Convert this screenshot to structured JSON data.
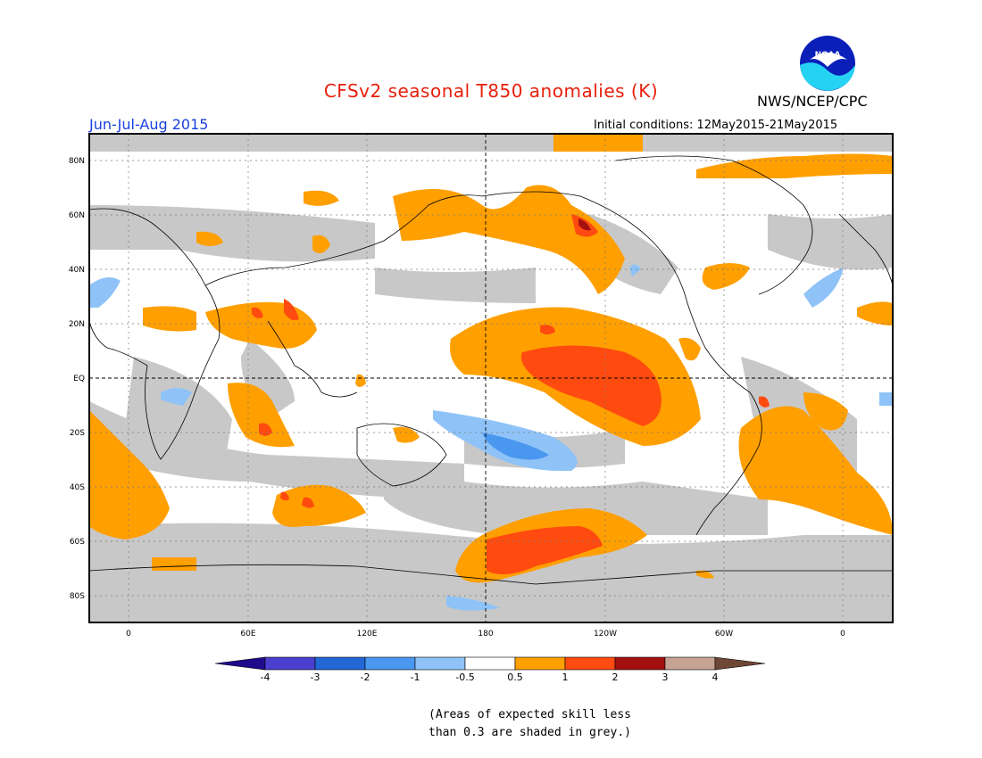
{
  "header": {
    "title": "CFSv2 seasonal T850 anomalies (K)",
    "period": "Jun-Jul-Aug 2015",
    "initial_conditions": "Initial conditions: 12May2015-21May2015",
    "agency": "NWS/NCEP/CPC",
    "logo_text": "NOAA"
  },
  "map": {
    "lat_labels": [
      "80N",
      "60N",
      "40N",
      "20N",
      "EQ",
      "20S",
      "40S",
      "60S",
      "80S"
    ],
    "lon_labels": [
      "0",
      "60E",
      "120E",
      "180",
      "120W",
      "60W",
      "0"
    ]
  },
  "colorbar": {
    "levels": [
      "-4",
      "-3",
      "-2",
      "-1",
      "-0.5",
      "0.5",
      "1",
      "2",
      "3",
      "4"
    ],
    "colors": [
      "#1e0b8c",
      "#4a3fcf",
      "#2366d6",
      "#4a97f0",
      "#8fc3f7",
      "#ffffff",
      "#ff9f00",
      "#ff4a10",
      "#a31010",
      "#c6a393",
      "#6e4736"
    ]
  },
  "note": {
    "line1": "(Areas of expected skill less",
    "line2": "than 0.3 are shaded in grey.)"
  },
  "colors": {
    "title": "#e8200c",
    "period": "#1a3fe0",
    "skill_grey": "#c8c8c8"
  }
}
